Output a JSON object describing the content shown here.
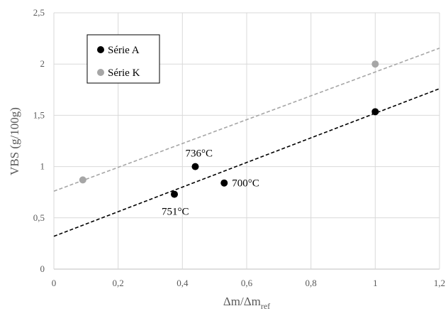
{
  "chart_data": {
    "type": "scatter",
    "xlabel": "Δm/Δm",
    "xlabel_sub": "ref",
    "ylabel": "VBS (g/100g)",
    "xlim": [
      0,
      1.2
    ],
    "ylim": [
      0,
      2.5
    ],
    "x_ticks": [
      0,
      0.2,
      0.4,
      0.6,
      0.8,
      1.0,
      1.2
    ],
    "y_ticks": [
      0,
      0.5,
      1.0,
      1.5,
      2.0,
      2.5
    ],
    "x_tick_labels": [
      "0",
      "0,2",
      "0,4",
      "0,6",
      "0,8",
      "1",
      "1,2"
    ],
    "y_tick_labels": [
      "0",
      "0,5",
      "1",
      "1,5",
      "2",
      "2,5"
    ],
    "grid": true,
    "legend_position": "top-left",
    "series": [
      {
        "name": "Série A",
        "color": "#000000",
        "points": [
          {
            "x": 0.375,
            "y": 0.73,
            "label": "751°C"
          },
          {
            "x": 0.44,
            "y": 1.0,
            "label": "736°C"
          },
          {
            "x": 0.53,
            "y": 0.84,
            "label": "700°C"
          },
          {
            "x": 1.0,
            "y": 1.535,
            "label": ""
          }
        ],
        "trendline": {
          "style": "dashed",
          "y_at_x0": 0.32,
          "y_at_xmax": 1.76
        }
      },
      {
        "name": "Série K",
        "color": "#a6a6a6",
        "points": [
          {
            "x": 0.09,
            "y": 0.87,
            "label": ""
          },
          {
            "x": 1.0,
            "y": 2.0,
            "label": ""
          }
        ],
        "trendline": {
          "style": "dashed",
          "y_at_x0": 0.76,
          "y_at_xmax": 2.155
        }
      }
    ]
  }
}
